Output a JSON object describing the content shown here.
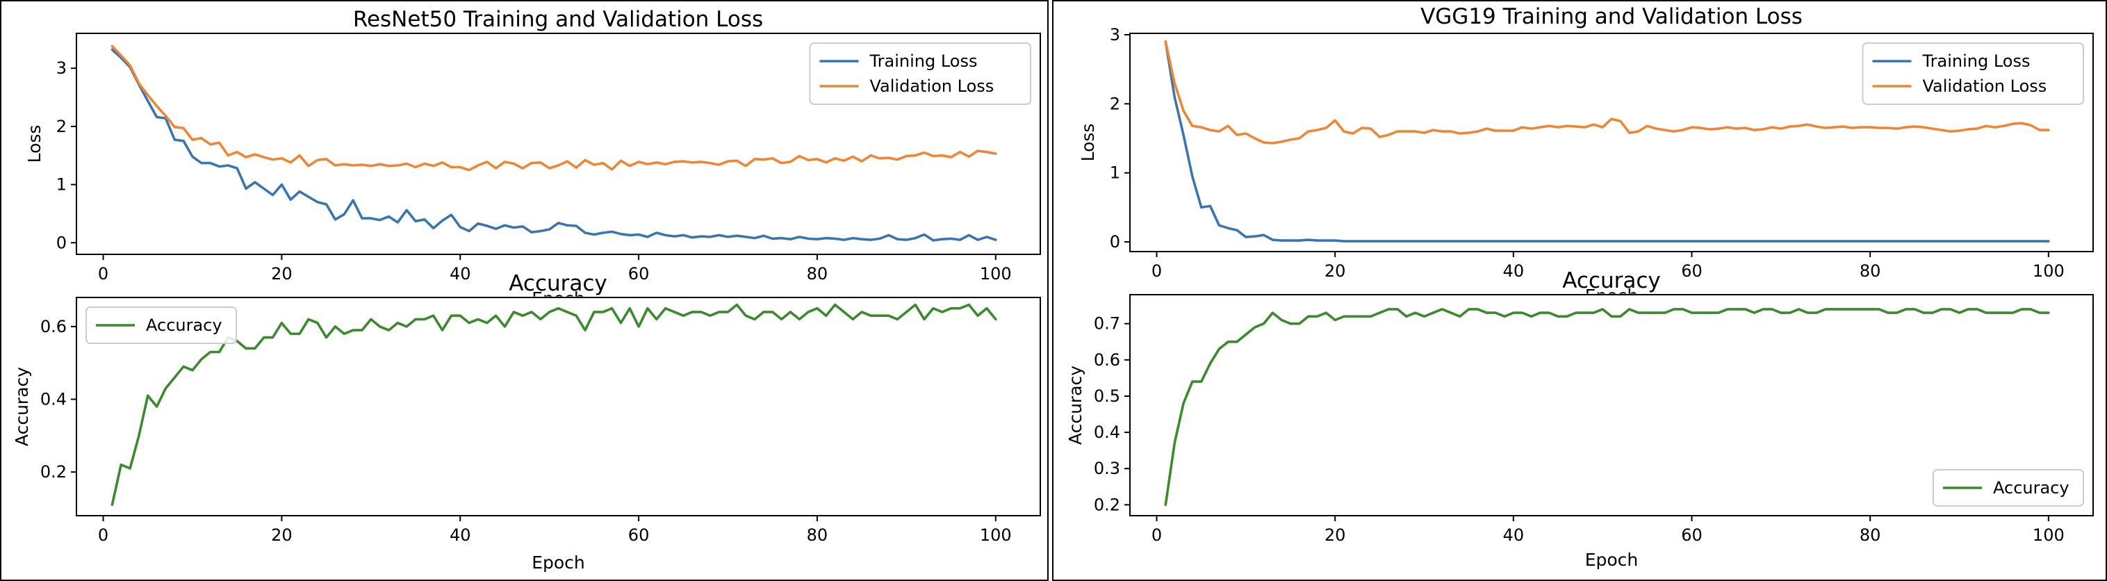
{
  "chart_data": [
    {
      "type": "line",
      "title": "ResNet50 Training and Validation Loss",
      "xlabel": "Epoch",
      "ylabel": "Loss",
      "xlim": [
        -3,
        105
      ],
      "ylim": [
        -0.2,
        3.6
      ],
      "xticks": [
        0,
        20,
        40,
        60,
        80,
        100
      ],
      "yticks": [
        0,
        1,
        2,
        3
      ],
      "xtick_labels": [
        "0",
        "20",
        "40",
        "60",
        "80",
        "100"
      ],
      "ytick_labels": [
        "0",
        "1",
        "2",
        "3"
      ],
      "legend_location": "top-right",
      "series": [
        {
          "name": "Training Loss",
          "color": "#3b75af",
          "values": [
            3.32,
            3.18,
            3.02,
            2.72,
            2.44,
            2.16,
            2.14,
            1.77,
            1.75,
            1.48,
            1.37,
            1.37,
            1.31,
            1.33,
            1.28,
            0.93,
            1.04,
            0.93,
            0.82,
            1.0,
            0.74,
            0.88,
            0.79,
            0.7,
            0.66,
            0.4,
            0.49,
            0.73,
            0.42,
            0.42,
            0.39,
            0.45,
            0.35,
            0.56,
            0.37,
            0.4,
            0.25,
            0.38,
            0.48,
            0.27,
            0.2,
            0.33,
            0.29,
            0.24,
            0.3,
            0.26,
            0.28,
            0.18,
            0.2,
            0.23,
            0.34,
            0.3,
            0.29,
            0.17,
            0.14,
            0.17,
            0.19,
            0.15,
            0.13,
            0.14,
            0.1,
            0.17,
            0.13,
            0.11,
            0.13,
            0.09,
            0.11,
            0.1,
            0.13,
            0.1,
            0.12,
            0.1,
            0.08,
            0.12,
            0.07,
            0.08,
            0.06,
            0.1,
            0.07,
            0.06,
            0.08,
            0.07,
            0.05,
            0.08,
            0.06,
            0.05,
            0.07,
            0.13,
            0.06,
            0.05,
            0.08,
            0.14,
            0.04,
            0.06,
            0.07,
            0.05,
            0.13,
            0.05,
            0.1,
            0.05
          ]
        },
        {
          "name": "Validation Loss",
          "color": "#ef8636",
          "values": [
            3.38,
            3.22,
            3.05,
            2.74,
            2.54,
            2.35,
            2.18,
            1.99,
            1.97,
            1.77,
            1.8,
            1.69,
            1.72,
            1.5,
            1.56,
            1.47,
            1.52,
            1.47,
            1.43,
            1.45,
            1.38,
            1.5,
            1.32,
            1.42,
            1.44,
            1.33,
            1.35,
            1.33,
            1.34,
            1.32,
            1.35,
            1.32,
            1.33,
            1.36,
            1.3,
            1.36,
            1.32,
            1.38,
            1.3,
            1.3,
            1.25,
            1.33,
            1.39,
            1.28,
            1.39,
            1.36,
            1.28,
            1.37,
            1.38,
            1.28,
            1.33,
            1.4,
            1.29,
            1.42,
            1.34,
            1.37,
            1.26,
            1.41,
            1.32,
            1.39,
            1.35,
            1.38,
            1.35,
            1.39,
            1.4,
            1.38,
            1.39,
            1.37,
            1.34,
            1.4,
            1.41,
            1.32,
            1.44,
            1.43,
            1.45,
            1.37,
            1.39,
            1.49,
            1.42,
            1.44,
            1.38,
            1.45,
            1.41,
            1.48,
            1.4,
            1.5,
            1.45,
            1.46,
            1.43,
            1.49,
            1.5,
            1.55,
            1.49,
            1.5,
            1.47,
            1.56,
            1.48,
            1.58,
            1.56,
            1.53
          ]
        }
      ]
    },
    {
      "type": "line",
      "title": "Accuracy",
      "xlabel": "Epoch",
      "ylabel": "Accuracy",
      "xlim": [
        -3,
        105
      ],
      "ylim": [
        0.08,
        0.68
      ],
      "xticks": [
        0,
        20,
        40,
        60,
        80,
        100
      ],
      "yticks": [
        0.2,
        0.4,
        0.6
      ],
      "xtick_labels": [
        "0",
        "20",
        "40",
        "60",
        "80",
        "100"
      ],
      "ytick_labels": [
        "0.2",
        "0.4",
        "0.6"
      ],
      "legend_location": "top-left",
      "series": [
        {
          "name": "Accuracy",
          "color": "#3c8a2e",
          "values": [
            0.11,
            0.22,
            0.21,
            0.3,
            0.41,
            0.38,
            0.43,
            0.46,
            0.49,
            0.48,
            0.51,
            0.53,
            0.53,
            0.57,
            0.56,
            0.54,
            0.54,
            0.57,
            0.57,
            0.61,
            0.58,
            0.58,
            0.62,
            0.61,
            0.57,
            0.6,
            0.58,
            0.59,
            0.59,
            0.62,
            0.6,
            0.59,
            0.61,
            0.6,
            0.62,
            0.62,
            0.63,
            0.59,
            0.63,
            0.63,
            0.61,
            0.62,
            0.61,
            0.63,
            0.6,
            0.64,
            0.63,
            0.64,
            0.62,
            0.64,
            0.65,
            0.64,
            0.63,
            0.59,
            0.64,
            0.64,
            0.65,
            0.61,
            0.65,
            0.6,
            0.65,
            0.62,
            0.65,
            0.64,
            0.63,
            0.64,
            0.64,
            0.63,
            0.64,
            0.64,
            0.66,
            0.63,
            0.62,
            0.64,
            0.64,
            0.62,
            0.64,
            0.62,
            0.64,
            0.65,
            0.63,
            0.66,
            0.64,
            0.62,
            0.64,
            0.63,
            0.63,
            0.63,
            0.62,
            0.64,
            0.66,
            0.62,
            0.65,
            0.64,
            0.65,
            0.65,
            0.66,
            0.63,
            0.65,
            0.62
          ]
        }
      ]
    },
    {
      "type": "line",
      "title": "VGG19 Training and Validation Loss",
      "xlabel": "Epoch",
      "ylabel": "Loss",
      "xlim": [
        -3,
        105
      ],
      "ylim": [
        -0.14,
        3.02
      ],
      "xticks": [
        0,
        20,
        40,
        60,
        80,
        100
      ],
      "yticks": [
        0,
        1,
        2,
        3
      ],
      "xtick_labels": [
        "0",
        "20",
        "40",
        "60",
        "80",
        "100"
      ],
      "ytick_labels": [
        "0",
        "1",
        "2",
        "3"
      ],
      "legend_location": "top-right",
      "series": [
        {
          "name": "Training Loss",
          "color": "#3b75af",
          "values": [
            2.9,
            2.1,
            1.55,
            0.95,
            0.5,
            0.52,
            0.24,
            0.2,
            0.17,
            0.07,
            0.08,
            0.1,
            0.03,
            0.02,
            0.02,
            0.02,
            0.03,
            0.02,
            0.02,
            0.02,
            0.01,
            0.01,
            0.01,
            0.01,
            0.01,
            0.01,
            0.01,
            0.01,
            0.01,
            0.01,
            0.01,
            0.01,
            0.01,
            0.01,
            0.01,
            0.01,
            0.01,
            0.01,
            0.01,
            0.01,
            0.01,
            0.01,
            0.01,
            0.01,
            0.01,
            0.01,
            0.01,
            0.01,
            0.01,
            0.01,
            0.01,
            0.01,
            0.01,
            0.01,
            0.01,
            0.01,
            0.01,
            0.01,
            0.01,
            0.01,
            0.01,
            0.01,
            0.01,
            0.01,
            0.01,
            0.01,
            0.01,
            0.01,
            0.01,
            0.01,
            0.01,
            0.01,
            0.01,
            0.01,
            0.01,
            0.01,
            0.01,
            0.01,
            0.01,
            0.01,
            0.01,
            0.01,
            0.01,
            0.01,
            0.01,
            0.01,
            0.01,
            0.01,
            0.01,
            0.01,
            0.01,
            0.01,
            0.01,
            0.01,
            0.01,
            0.01,
            0.01,
            0.01,
            0.01,
            0.01
          ]
        },
        {
          "name": "Validation Loss",
          "color": "#ef8636",
          "values": [
            2.9,
            2.3,
            1.9,
            1.68,
            1.66,
            1.62,
            1.6,
            1.68,
            1.55,
            1.57,
            1.5,
            1.44,
            1.43,
            1.45,
            1.48,
            1.5,
            1.6,
            1.62,
            1.65,
            1.76,
            1.6,
            1.57,
            1.65,
            1.64,
            1.52,
            1.55,
            1.6,
            1.6,
            1.6,
            1.58,
            1.62,
            1.6,
            1.6,
            1.57,
            1.58,
            1.6,
            1.64,
            1.61,
            1.61,
            1.61,
            1.66,
            1.64,
            1.66,
            1.68,
            1.66,
            1.68,
            1.67,
            1.66,
            1.7,
            1.66,
            1.78,
            1.75,
            1.58,
            1.6,
            1.68,
            1.64,
            1.62,
            1.6,
            1.62,
            1.66,
            1.65,
            1.63,
            1.64,
            1.66,
            1.64,
            1.65,
            1.62,
            1.63,
            1.66,
            1.64,
            1.67,
            1.68,
            1.7,
            1.67,
            1.65,
            1.66,
            1.67,
            1.65,
            1.66,
            1.66,
            1.65,
            1.65,
            1.64,
            1.66,
            1.67,
            1.66,
            1.64,
            1.62,
            1.6,
            1.61,
            1.63,
            1.64,
            1.68,
            1.66,
            1.68,
            1.71,
            1.72,
            1.69,
            1.62,
            1.62
          ]
        }
      ]
    },
    {
      "type": "line",
      "title": "Accuracy",
      "xlabel": "Epoch",
      "ylabel": "Accuracy",
      "xlim": [
        -3,
        105
      ],
      "ylim": [
        0.17,
        0.78
      ],
      "xticks": [
        0,
        20,
        40,
        60,
        80,
        100
      ],
      "yticks": [
        0.2,
        0.3,
        0.4,
        0.5,
        0.6,
        0.7
      ],
      "xtick_labels": [
        "0",
        "20",
        "40",
        "60",
        "80",
        "100"
      ],
      "ytick_labels": [
        "0.2",
        "0.3",
        "0.4",
        "0.5",
        "0.6",
        "0.7"
      ],
      "legend_location": "bottom-right",
      "series": [
        {
          "name": "Accuracy",
          "color": "#3c8a2e",
          "values": [
            0.2,
            0.37,
            0.48,
            0.54,
            0.54,
            0.59,
            0.63,
            0.65,
            0.65,
            0.67,
            0.69,
            0.7,
            0.73,
            0.71,
            0.7,
            0.7,
            0.72,
            0.72,
            0.73,
            0.71,
            0.72,
            0.72,
            0.72,
            0.72,
            0.73,
            0.74,
            0.74,
            0.72,
            0.73,
            0.72,
            0.73,
            0.74,
            0.73,
            0.72,
            0.74,
            0.74,
            0.73,
            0.73,
            0.72,
            0.73,
            0.73,
            0.72,
            0.73,
            0.73,
            0.72,
            0.72,
            0.73,
            0.73,
            0.73,
            0.74,
            0.72,
            0.72,
            0.74,
            0.73,
            0.73,
            0.73,
            0.73,
            0.74,
            0.74,
            0.73,
            0.73,
            0.73,
            0.73,
            0.74,
            0.74,
            0.74,
            0.73,
            0.74,
            0.74,
            0.73,
            0.73,
            0.74,
            0.73,
            0.73,
            0.74,
            0.74,
            0.74,
            0.74,
            0.74,
            0.74,
            0.74,
            0.73,
            0.73,
            0.74,
            0.74,
            0.73,
            0.73,
            0.74,
            0.74,
            0.73,
            0.74,
            0.74,
            0.73,
            0.73,
            0.73,
            0.73,
            0.74,
            0.74,
            0.73,
            0.73
          ]
        }
      ]
    }
  ]
}
